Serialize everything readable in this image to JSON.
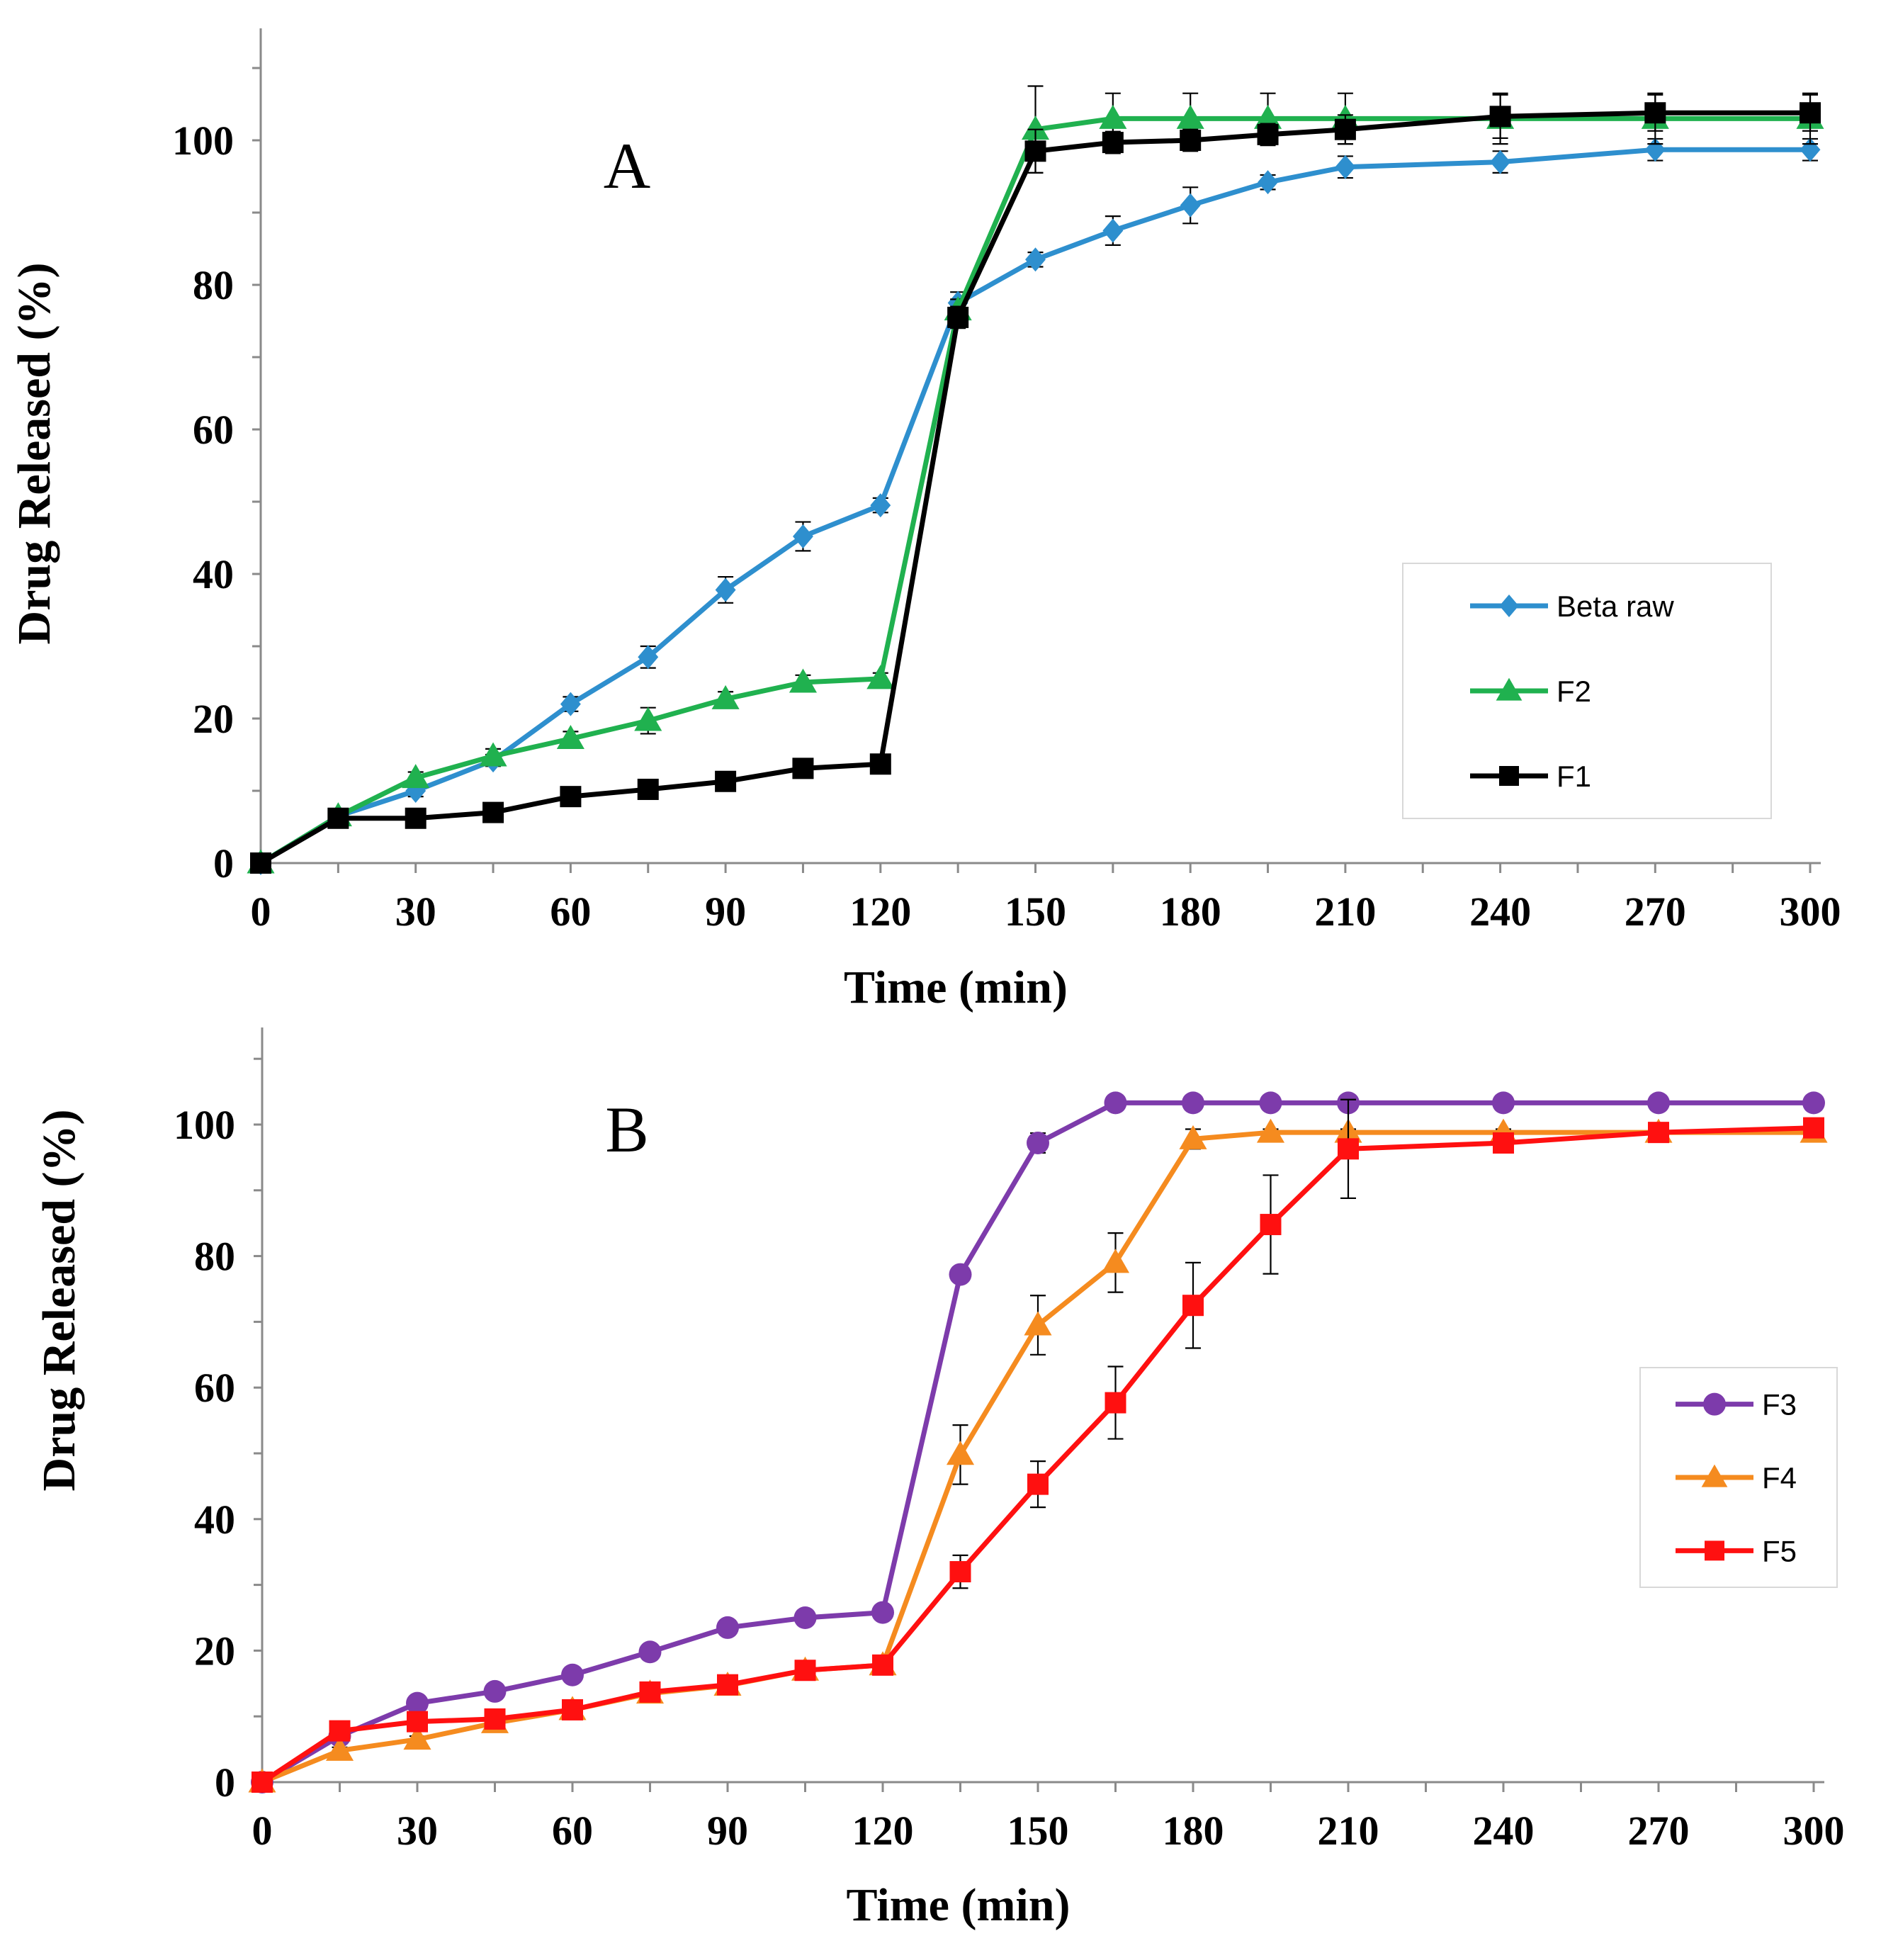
{
  "chart_data": [
    {
      "type": "line",
      "panel_label": "A",
      "xlabel": "Time (min)",
      "ylabel": "Drug Released (%)",
      "xlim": [
        0,
        300
      ],
      "ylim": [
        0,
        110
      ],
      "xticks": [
        0,
        30,
        60,
        90,
        120,
        150,
        180,
        210,
        240,
        270,
        300
      ],
      "yticks": [
        0,
        20,
        40,
        60,
        80,
        100
      ],
      "grid": false,
      "legend_position": "right-middle",
      "series": [
        {
          "name": "Beta raw",
          "color": "#2e8fce",
          "marker": "diamond",
          "x": [
            0,
            15,
            30,
            45,
            60,
            75,
            90,
            105,
            120,
            135,
            150,
            165,
            180,
            195,
            210,
            240,
            270,
            300
          ],
          "y": [
            0,
            6.5,
            10,
            14.2,
            22,
            28.5,
            37.8,
            45.2,
            49.5,
            77.5,
            83.5,
            87.5,
            91,
            94.2,
            96.3,
            97,
            98.7,
            98.7
          ],
          "err": [
            0,
            0.5,
            0.8,
            0.8,
            1,
            1.5,
            1.8,
            2,
            1,
            1.5,
            1,
            2,
            2.5,
            1,
            1.5,
            1.5,
            1.5,
            1.5
          ]
        },
        {
          "name": "F2",
          "color": "#20b14f",
          "marker": "triangle",
          "x": [
            0,
            15,
            30,
            45,
            60,
            75,
            90,
            105,
            120,
            135,
            150,
            165,
            180,
            195,
            210,
            240,
            270,
            300
          ],
          "y": [
            0,
            6.5,
            11.8,
            14.8,
            17.2,
            19.7,
            22.7,
            25,
            25.5,
            76.5,
            101.5,
            103,
            103,
            103,
            103,
            103,
            103,
            103
          ],
          "err": [
            0,
            0.5,
            0.8,
            1,
            1,
            1.8,
            1,
            1,
            0.8,
            1.5,
            6,
            3.5,
            3.5,
            3.5,
            3.5,
            3.5,
            3.5,
            3.5
          ]
        },
        {
          "name": "F1",
          "color": "#000000",
          "marker": "square",
          "x": [
            0,
            15,
            30,
            45,
            60,
            75,
            90,
            105,
            120,
            135,
            150,
            165,
            180,
            195,
            210,
            240,
            270,
            300
          ],
          "y": [
            0,
            6.2,
            6.2,
            7,
            9.2,
            10.2,
            11.3,
            13.1,
            13.7,
            75.5,
            98.5,
            99.7,
            100,
            100.8,
            101.5,
            103.3,
            103.8,
            103.8
          ],
          "err": [
            0,
            0.5,
            0.5,
            0.5,
            0.8,
            0.8,
            0.8,
            1,
            1,
            1.5,
            3,
            1.5,
            1.5,
            1.5,
            2,
            3,
            2.5,
            2.5
          ]
        }
      ]
    },
    {
      "type": "line",
      "panel_label": "B",
      "xlabel": "Time (min)",
      "ylabel": "Drug Released (%)",
      "xlim": [
        0,
        300
      ],
      "ylim": [
        0,
        110
      ],
      "xticks": [
        0,
        30,
        60,
        90,
        120,
        150,
        180,
        210,
        240,
        270,
        300
      ],
      "yticks": [
        0,
        20,
        40,
        60,
        80,
        100
      ],
      "grid": false,
      "legend_position": "right-middle",
      "series": [
        {
          "name": "F3",
          "color": "#7d3bab",
          "marker": "circle",
          "x": [
            0,
            15,
            30,
            45,
            60,
            75,
            90,
            105,
            120,
            135,
            150,
            165,
            180,
            195,
            210,
            240,
            270,
            300
          ],
          "y": [
            0,
            7,
            12,
            13.8,
            16.3,
            19.8,
            23.5,
            25,
            25.8,
            77.2,
            97.2,
            103.3,
            103.3,
            103.3,
            103.3,
            103.3,
            103.3,
            103.3
          ],
          "err": [
            0,
            0.5,
            0.8,
            0.8,
            0.8,
            0.8,
            0.8,
            0.8,
            0.8,
            1,
            1.5,
            0.5,
            0.5,
            0.5,
            0.5,
            0.5,
            0.5,
            0.5
          ]
        },
        {
          "name": "F4",
          "color": "#f58b1f",
          "marker": "triangle",
          "x": [
            0,
            15,
            30,
            45,
            60,
            75,
            90,
            105,
            120,
            135,
            150,
            165,
            180,
            195,
            210,
            240,
            270,
            300
          ],
          "y": [
            0,
            4.8,
            6.5,
            9,
            11,
            13.5,
            14.7,
            17,
            17.8,
            49.8,
            69.5,
            79,
            97.8,
            98.8,
            98.8,
            98.8,
            98.8,
            98.8
          ],
          "err": [
            0,
            0.5,
            0.5,
            0.5,
            0.5,
            0.5,
            0.5,
            0.5,
            0.5,
            4.5,
            4.5,
            4.5,
            1.5,
            0.5,
            0.5,
            0.5,
            0.5,
            0.5
          ]
        },
        {
          "name": "F5",
          "color": "#ff1010",
          "marker": "square",
          "x": [
            0,
            15,
            30,
            45,
            60,
            75,
            90,
            105,
            120,
            135,
            150,
            165,
            180,
            195,
            210,
            240,
            270,
            300
          ],
          "y": [
            0,
            7.8,
            9.2,
            9.6,
            11,
            13.7,
            14.8,
            17,
            17.8,
            32,
            45.3,
            57.7,
            72.5,
            84.8,
            96.3,
            97.2,
            98.8,
            99.5
          ],
          "err": [
            0,
            0.5,
            0.5,
            0.5,
            0.5,
            0.5,
            0.5,
            0.5,
            0.5,
            2.5,
            3.5,
            5.5,
            6.5,
            7.5,
            7.5,
            1,
            1,
            1
          ]
        }
      ]
    }
  ]
}
